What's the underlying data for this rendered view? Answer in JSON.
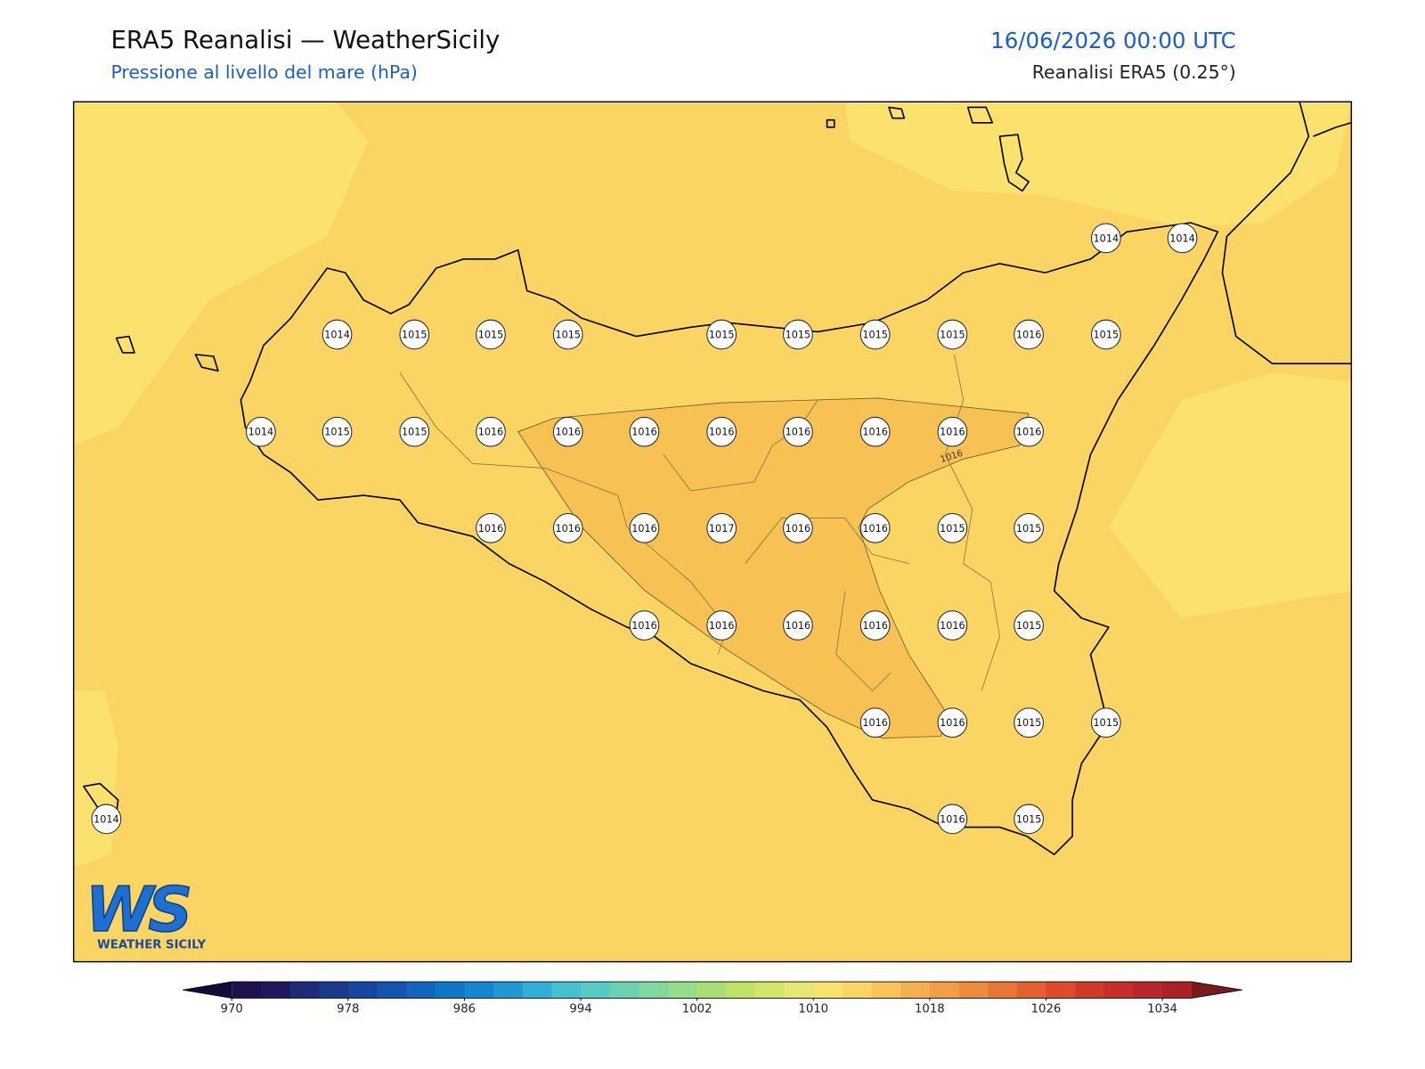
{
  "header": {
    "title": "ERA5 Reanalisi — WeatherSicily",
    "subtitle": "Pressione al livello del mare (hPa)",
    "datetime": "16/06/2026 00:00 UTC",
    "source": "Reanalisi ERA5 (0.25°)"
  },
  "map": {
    "stations": [
      1014,
      1014,
      1014,
      1015,
      1015,
      1015,
      1015,
      1015,
      1015,
      1015,
      1016,
      1015,
      1014,
      1015,
      1015,
      1016,
      1016,
      1016,
      1016,
      1016,
      1016,
      1016,
      1016,
      1016,
      1016,
      1016,
      1017,
      1016,
      1016,
      1015,
      1015,
      1016,
      1016,
      1016,
      1016,
      1016,
      1015,
      1016,
      1016,
      1015,
      1015,
      1014,
      1016,
      1015
    ],
    "contour_label": "1016"
  },
  "colorbar": {
    "range": [
      970,
      1036
    ],
    "ticks": [
      970,
      978,
      986,
      994,
      1002,
      1010,
      1018,
      1026,
      1034
    ],
    "colors": [
      "#1f1050",
      "#21175e",
      "#1f2a78",
      "#1b3a8c",
      "#1747a0",
      "#1555b0",
      "#1265be",
      "#0f76c8",
      "#1386cf",
      "#2197d3",
      "#30aed6",
      "#45bfd2",
      "#58c9c4",
      "#6bd1b3",
      "#7fd8a0",
      "#94dd8a",
      "#aade74",
      "#bfe265",
      "#d3e66a",
      "#e4e772",
      "#f7e26e",
      "#fbd565",
      "#f8c459",
      "#f4b04f",
      "#f19e46",
      "#ee8b3d",
      "#e97635",
      "#e4612f",
      "#dc4c2b",
      "#d03b29",
      "#c42f2a",
      "#b8272b",
      "#a82228"
    ],
    "under_color": "#160a3a",
    "over_color": "#7a1a1d"
  },
  "logo": {
    "mark": "WS",
    "text": "WEATHER SICILY"
  }
}
